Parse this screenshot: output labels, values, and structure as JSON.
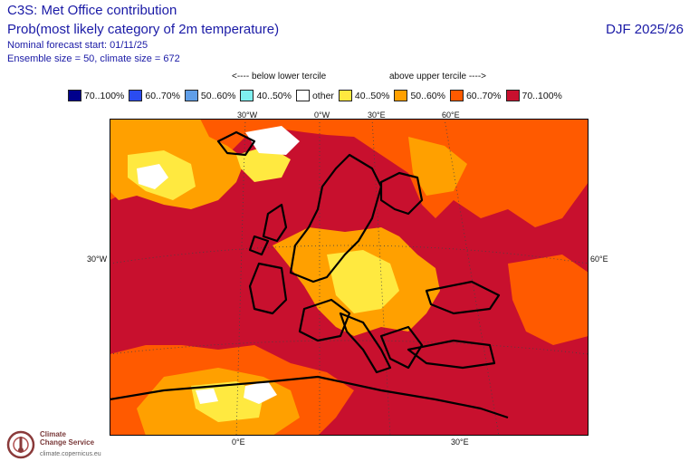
{
  "header": {
    "line1": "C3S: Met Office contribution",
    "line2": "Prob(most likely category of 2m temperature)",
    "line3": "Nominal forecast start: 01/11/25",
    "line4": "Ensemble size = 50, climate size = 672",
    "season": "DJF 2025/26"
  },
  "terciles": {
    "below": "<---- below lower tercile",
    "above": "above upper tercile ---->"
  },
  "legend": [
    {
      "label": "70..100%",
      "color": "#00008c"
    },
    {
      "label": "60..70%",
      "color": "#2b4cf0"
    },
    {
      "label": "50..60%",
      "color": "#5f9ee8"
    },
    {
      "label": "40..50%",
      "color": "#7ff0f0"
    },
    {
      "label": "other",
      "color": "#ffffff"
    },
    {
      "label": "40..50%",
      "color": "#ffe940"
    },
    {
      "label": "50..60%",
      "color": "#ffa000"
    },
    {
      "label": "60..70%",
      "color": "#ff5a00"
    },
    {
      "label": "70..100%",
      "color": "#c8102e"
    }
  ],
  "axes": {
    "top": [
      "30°W",
      "0°W",
      "30°E",
      "60°E"
    ],
    "left": "30°W",
    "right": "60°E",
    "bottom": [
      "0°E",
      "30°E"
    ]
  },
  "logo": {
    "line1": "Climate",
    "line2": "Change Service",
    "url": "climate.copernicus.eu"
  }
}
